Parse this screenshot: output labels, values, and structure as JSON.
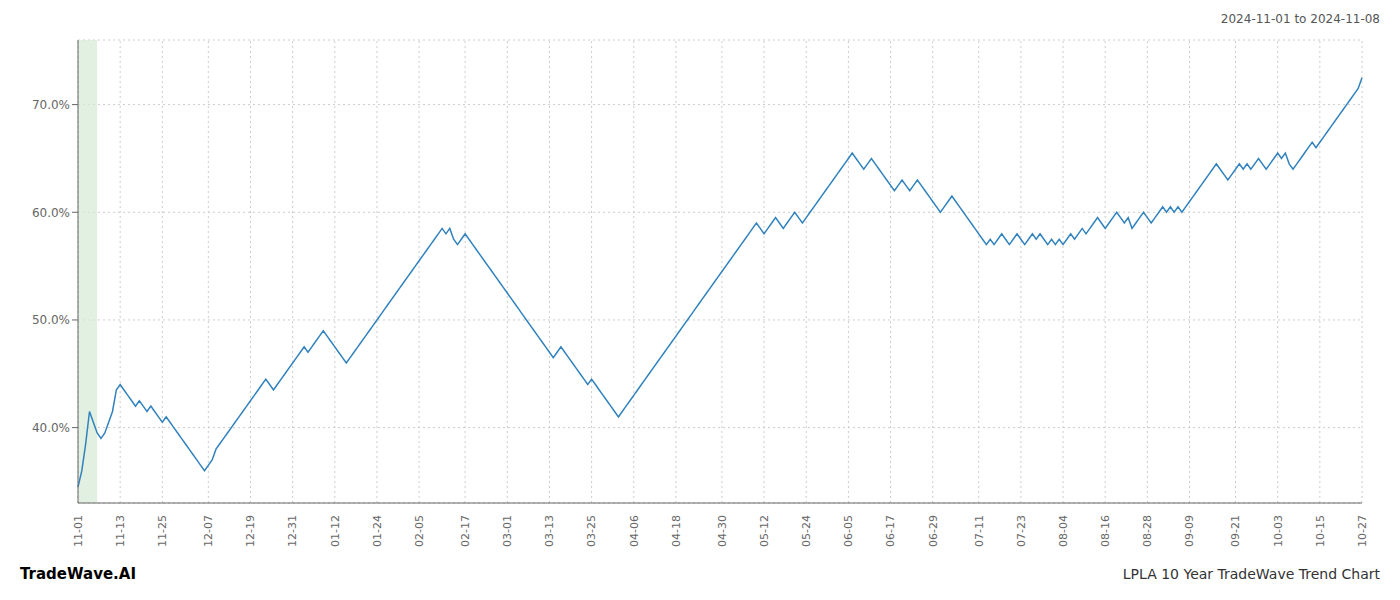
{
  "chart_data": {
    "type": "line",
    "title": "LPLA 10 Year TradeWave Trend Chart",
    "subtitle": "2024-11-01 to 2024-11-08",
    "annotations": [
      "TradeWave.AI"
    ],
    "categories": [
      "11-01",
      null,
      null,
      null,
      null,
      null,
      null,
      null,
      null,
      null,
      null,
      "11-13",
      null,
      null,
      null,
      null,
      null,
      null,
      null,
      null,
      null,
      null,
      "11-25",
      null,
      null,
      null,
      null,
      null,
      null,
      null,
      null,
      null,
      null,
      null,
      "12-07",
      null,
      null,
      null,
      null,
      null,
      null,
      null,
      null,
      null,
      null,
      "12-19",
      null,
      null,
      null,
      null,
      null,
      null,
      null,
      null,
      null,
      null,
      "12-31",
      null,
      null,
      null,
      null,
      null,
      null,
      null,
      null,
      null,
      null,
      "01-12",
      null,
      null,
      null,
      null,
      null,
      null,
      null,
      null,
      null,
      null,
      "01-24",
      null,
      null,
      null,
      null,
      null,
      null,
      null,
      null,
      null,
      null,
      "02-05",
      null,
      null,
      null,
      null,
      null,
      null,
      null,
      null,
      null,
      null,
      null,
      "02-17",
      null,
      null,
      null,
      null,
      null,
      null,
      null,
      null,
      null,
      null,
      "03-01",
      null,
      null,
      null,
      null,
      null,
      null,
      null,
      null,
      null,
      null,
      "03-13",
      null,
      null,
      null,
      null,
      null,
      null,
      null,
      null,
      null,
      null,
      "03-25",
      null,
      null,
      null,
      null,
      null,
      null,
      null,
      null,
      null,
      null,
      "04-06",
      null,
      null,
      null,
      null,
      null,
      null,
      null,
      null,
      null,
      null,
      "04-18",
      null,
      null,
      null,
      null,
      null,
      null,
      null,
      null,
      null,
      null,
      null,
      "04-30",
      null,
      null,
      null,
      null,
      null,
      null,
      null,
      null,
      null,
      null,
      "05-12",
      null,
      null,
      null,
      null,
      null,
      null,
      null,
      null,
      null,
      null,
      "05-24",
      null,
      null,
      null,
      null,
      null,
      null,
      null,
      null,
      null,
      null,
      "06-05",
      null,
      null,
      null,
      null,
      null,
      null,
      null,
      null,
      null,
      null,
      "06-17",
      null,
      null,
      null,
      null,
      null,
      null,
      null,
      null,
      null,
      null,
      "06-29",
      null,
      null,
      null,
      null,
      null,
      null,
      null,
      null,
      null,
      null,
      null,
      "07-11",
      null,
      null,
      null,
      null,
      null,
      null,
      null,
      null,
      null,
      null,
      "07-23",
      null,
      null,
      null,
      null,
      null,
      null,
      null,
      null,
      null,
      null,
      "08-04",
      null,
      null,
      null,
      null,
      null,
      null,
      null,
      null,
      null,
      null,
      "08-16",
      null,
      null,
      null,
      null,
      null,
      null,
      null,
      null,
      null,
      null,
      "08-28",
      null,
      null,
      null,
      null,
      null,
      null,
      null,
      null,
      null,
      null,
      "09-09",
      null,
      null,
      null,
      null,
      null,
      null,
      null,
      null,
      null,
      null,
      null,
      "09-21",
      null,
      null,
      null,
      null,
      null,
      null,
      null,
      null,
      null,
      null,
      "10-03",
      null,
      null,
      null,
      null,
      null,
      null,
      null,
      null,
      null,
      null,
      "10-15",
      null,
      null,
      null,
      null,
      null,
      null,
      null,
      null,
      null,
      null,
      "10-27"
    ],
    "values": [
      34.5,
      36.0,
      38.5,
      41.5,
      40.5,
      39.5,
      39.0,
      39.5,
      40.5,
      41.5,
      43.5,
      44.0,
      43.5,
      43.0,
      42.5,
      42.0,
      42.5,
      42.0,
      41.5,
      42.0,
      41.5,
      41.0,
      40.5,
      41.0,
      40.5,
      40.0,
      39.5,
      39.0,
      38.5,
      38.0,
      37.5,
      37.0,
      36.5,
      36.0,
      36.5,
      37.0,
      38.0,
      38.5,
      39.0,
      39.5,
      40.0,
      40.5,
      41.0,
      41.5,
      42.0,
      42.5,
      43.0,
      43.5,
      44.0,
      44.5,
      44.0,
      43.5,
      44.0,
      44.5,
      45.0,
      45.5,
      46.0,
      46.5,
      47.0,
      47.5,
      47.0,
      47.5,
      48.0,
      48.5,
      49.0,
      48.5,
      48.0,
      47.5,
      47.0,
      46.5,
      46.0,
      46.5,
      47.0,
      47.5,
      48.0,
      48.5,
      49.0,
      49.5,
      50.0,
      50.5,
      51.0,
      51.5,
      52.0,
      52.5,
      53.0,
      53.5,
      54.0,
      54.5,
      55.0,
      55.5,
      56.0,
      56.5,
      57.0,
      57.5,
      58.0,
      58.5,
      58.0,
      58.5,
      57.5,
      57.0,
      57.5,
      58.0,
      57.5,
      57.0,
      56.5,
      56.0,
      55.5,
      55.0,
      54.5,
      54.0,
      53.5,
      53.0,
      52.5,
      52.0,
      51.5,
      51.0,
      50.5,
      50.0,
      49.5,
      49.0,
      48.5,
      48.0,
      47.5,
      47.0,
      46.5,
      47.0,
      47.5,
      47.0,
      46.5,
      46.0,
      45.5,
      45.0,
      44.5,
      44.0,
      44.5,
      44.0,
      43.5,
      43.0,
      42.5,
      42.0,
      41.5,
      41.0,
      41.5,
      42.0,
      42.5,
      43.0,
      43.5,
      44.0,
      44.5,
      45.0,
      45.5,
      46.0,
      46.5,
      47.0,
      47.5,
      48.0,
      48.5,
      49.0,
      49.5,
      50.0,
      50.5,
      51.0,
      51.5,
      52.0,
      52.5,
      53.0,
      53.5,
      54.0,
      54.5,
      55.0,
      55.5,
      56.0,
      56.5,
      57.0,
      57.5,
      58.0,
      58.5,
      59.0,
      58.5,
      58.0,
      58.5,
      59.0,
      59.5,
      59.0,
      58.5,
      59.0,
      59.5,
      60.0,
      59.5,
      59.0,
      59.5,
      60.0,
      60.5,
      61.0,
      61.5,
      62.0,
      62.5,
      63.0,
      63.5,
      64.0,
      64.5,
      65.0,
      65.5,
      65.0,
      64.5,
      64.0,
      64.5,
      65.0,
      64.5,
      64.0,
      63.5,
      63.0,
      62.5,
      62.0,
      62.5,
      63.0,
      62.5,
      62.0,
      62.5,
      63.0,
      62.5,
      62.0,
      61.5,
      61.0,
      60.5,
      60.0,
      60.5,
      61.0,
      61.5,
      61.0,
      60.5,
      60.0,
      59.5,
      59.0,
      58.5,
      58.0,
      57.5,
      57.0,
      57.5,
      57.0,
      57.5,
      58.0,
      57.5,
      57.0,
      57.5,
      58.0,
      57.5,
      57.0,
      57.5,
      58.0,
      57.5,
      58.0,
      57.5,
      57.0,
      57.5,
      57.0,
      57.5,
      57.0,
      57.5,
      58.0,
      57.5,
      58.0,
      58.5,
      58.0,
      58.5,
      59.0,
      59.5,
      59.0,
      58.5,
      59.0,
      59.5,
      60.0,
      59.5,
      59.0,
      59.5,
      58.5,
      59.0,
      59.5,
      60.0,
      59.5,
      59.0,
      59.5,
      60.0,
      60.5,
      60.0,
      60.5,
      60.0,
      60.5,
      60.0,
      60.5,
      61.0,
      61.5,
      62.0,
      62.5,
      63.0,
      63.5,
      64.0,
      64.5,
      64.0,
      63.5,
      63.0,
      63.5,
      64.0,
      64.5,
      64.0,
      64.5,
      64.0,
      64.5,
      65.0,
      64.5,
      64.0,
      64.5,
      65.0,
      65.5,
      65.0,
      65.5,
      64.5,
      64.0,
      64.5,
      65.0,
      65.5,
      66.0,
      66.5,
      66.0,
      66.5,
      67.0,
      67.5,
      68.0,
      68.5,
      69.0,
      69.5,
      70.0,
      70.5,
      71.0,
      71.5,
      72.5
    ],
    "ylim": [
      33,
      76
    ],
    "yticks": [
      {
        "value": 40,
        "label": "40.0%"
      },
      {
        "value": 50,
        "label": "50.0%"
      },
      {
        "value": 60,
        "label": "60.0%"
      },
      {
        "value": 70,
        "label": "70.0%"
      }
    ],
    "grid": true,
    "shaded": {
      "start": 0,
      "end": 5,
      "color": "#d4ead4"
    }
  }
}
